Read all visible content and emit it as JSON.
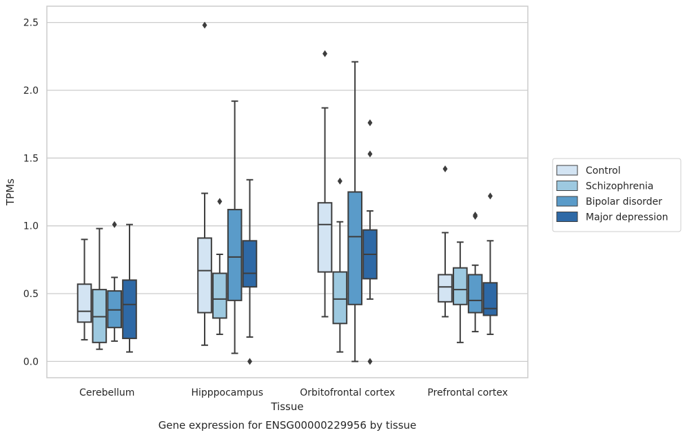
{
  "chart_data": {
    "type": "boxplot",
    "title": "",
    "xlabel": "Tissue",
    "ylabel": "TPMs",
    "caption": "Gene expression for ENSG00000229956 by tissue",
    "ylim": [
      -0.12,
      2.62
    ],
    "yticks": [
      0.0,
      0.5,
      1.0,
      1.5,
      2.0,
      2.5
    ],
    "ytick_labels": [
      "0.0",
      "0.5",
      "1.0",
      "1.5",
      "2.0",
      "2.5"
    ],
    "grid": "horizontal",
    "legend_position": "right",
    "categories": [
      "Cerebellum",
      "Hipppocampus",
      "Orbitofrontal cortex",
      "Prefrontal cortex"
    ],
    "series": [
      {
        "name": "Control",
        "color": "#d3e4f3",
        "boxes": [
          {
            "whislo": 0.16,
            "q1": 0.29,
            "med": 0.37,
            "q3": 0.57,
            "whishi": 0.9,
            "fliers": []
          },
          {
            "whislo": 0.12,
            "q1": 0.36,
            "med": 0.67,
            "q3": 0.91,
            "whishi": 1.24,
            "fliers": [
              2.48
            ]
          },
          {
            "whislo": 0.33,
            "q1": 0.66,
            "med": 1.01,
            "q3": 1.17,
            "whishi": 1.87,
            "fliers": [
              2.27
            ]
          },
          {
            "whislo": 0.33,
            "q1": 0.44,
            "med": 0.55,
            "q3": 0.64,
            "whishi": 0.95,
            "fliers": [
              1.42
            ]
          }
        ]
      },
      {
        "name": "Schizophrenia",
        "color": "#9dc9e0",
        "boxes": [
          {
            "whislo": 0.09,
            "q1": 0.14,
            "med": 0.33,
            "q3": 0.53,
            "whishi": 0.98,
            "fliers": []
          },
          {
            "whislo": 0.2,
            "q1": 0.32,
            "med": 0.46,
            "q3": 0.65,
            "whishi": 0.79,
            "fliers": [
              1.18
            ]
          },
          {
            "whislo": 0.07,
            "q1": 0.28,
            "med": 0.46,
            "q3": 0.66,
            "whishi": 1.03,
            "fliers": [
              1.33
            ]
          },
          {
            "whislo": 0.14,
            "q1": 0.42,
            "med": 0.53,
            "q3": 0.69,
            "whishi": 0.88,
            "fliers": []
          }
        ]
      },
      {
        "name": "Bipolar disorder",
        "color": "#5a9bc9",
        "boxes": [
          {
            "whislo": 0.15,
            "q1": 0.25,
            "med": 0.38,
            "q3": 0.52,
            "whishi": 0.62,
            "fliers": [
              1.01
            ]
          },
          {
            "whislo": 0.06,
            "q1": 0.45,
            "med": 0.77,
            "q3": 1.12,
            "whishi": 1.92,
            "fliers": []
          },
          {
            "whislo": 0.0,
            "q1": 0.42,
            "med": 0.92,
            "q3": 1.25,
            "whishi": 2.21,
            "fliers": []
          },
          {
            "whislo": 0.22,
            "q1": 0.36,
            "med": 0.45,
            "q3": 0.64,
            "whishi": 0.71,
            "fliers": [
              1.07,
              1.08
            ]
          }
        ]
      },
      {
        "name": "Major depression",
        "color": "#2e69a6",
        "boxes": [
          {
            "whislo": 0.07,
            "q1": 0.17,
            "med": 0.42,
            "q3": 0.6,
            "whishi": 1.01,
            "fliers": []
          },
          {
            "whislo": 0.18,
            "q1": 0.55,
            "med": 0.65,
            "q3": 0.89,
            "whishi": 1.34,
            "fliers": [
              0.0
            ]
          },
          {
            "whislo": 0.46,
            "q1": 0.61,
            "med": 0.79,
            "q3": 0.97,
            "whishi": 1.11,
            "fliers": [
              1.53,
              1.76,
              0.0
            ]
          },
          {
            "whislo": 0.2,
            "q1": 0.34,
            "med": 0.39,
            "q3": 0.58,
            "whishi": 0.89,
            "fliers": [
              1.22
            ]
          }
        ]
      }
    ]
  }
}
